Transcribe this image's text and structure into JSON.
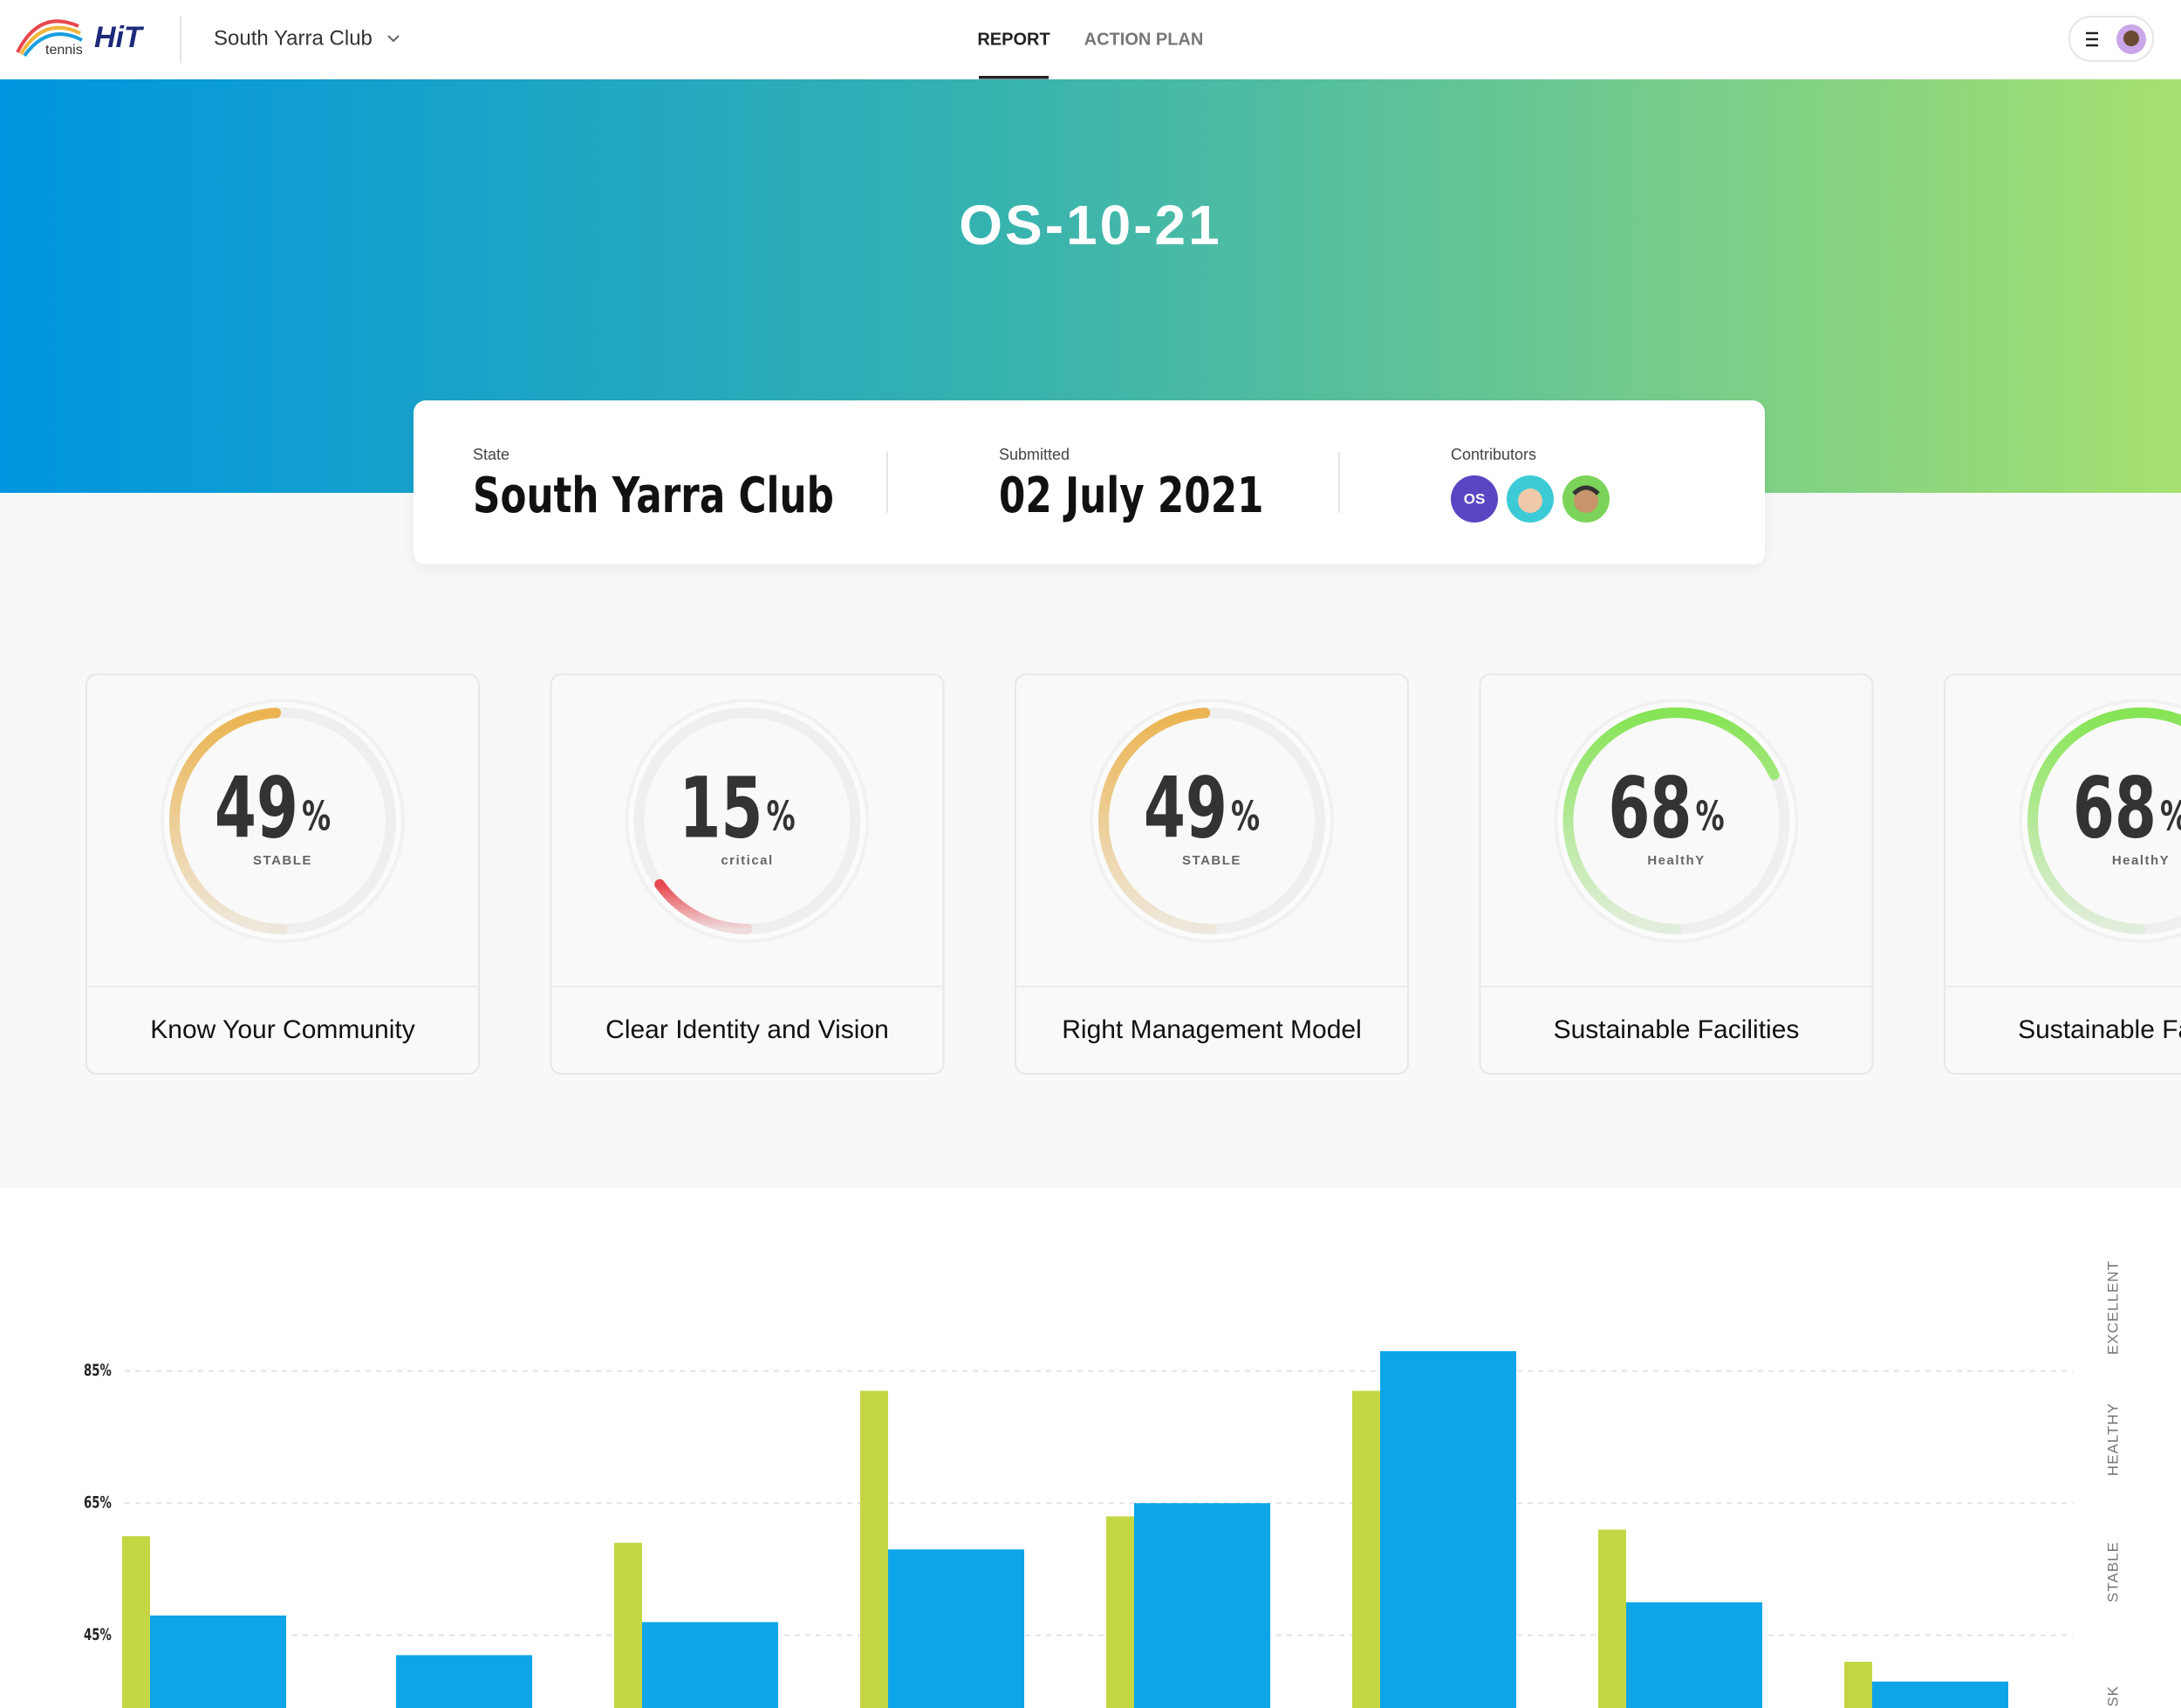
{
  "header": {
    "logo_text": "tennis",
    "brand": "HiT",
    "club": "South Yarra Club",
    "nav": [
      "REPORT",
      "ACTION PLAN"
    ]
  },
  "hero": {
    "title": "OS-10-21"
  },
  "summary": {
    "state_label": "State",
    "state": "South Yarra Club",
    "submitted_label": "Submitted",
    "submitted": "02 July 2021",
    "contributors_label": "Contributors",
    "contributors": [
      "OS"
    ]
  },
  "cards": [
    {
      "value": 49,
      "unit": "%",
      "status": "STABLE",
      "title": "Know Your Community",
      "color": "#ebb451"
    },
    {
      "value": 15,
      "unit": "%",
      "status": "critical",
      "title": "Clear Identity and Vision",
      "color": "#e8474f"
    },
    {
      "value": 49,
      "unit": "%",
      "status": "STABLE",
      "title": "Right Management Model",
      "color": "#ebb451"
    },
    {
      "value": 68,
      "unit": "%",
      "status": "HealthY",
      "title": "Sustainable Facilities",
      "color": "#86e455"
    },
    {
      "value": 68,
      "unit": "%",
      "status": "HealthY",
      "title": "Sustainable Facilities",
      "color": "#86e455"
    }
  ],
  "chart_data": {
    "type": "bar",
    "series": [
      {
        "color": "#c4d643",
        "values": [
          60,
          null,
          59,
          82,
          63,
          82,
          61,
          41
        ]
      },
      {
        "color": "#0ea5e8",
        "values": [
          48,
          42,
          47,
          58,
          65,
          88,
          50,
          38
        ]
      }
    ],
    "ylim": [
      34,
      108
    ],
    "yticks": [
      {
        "value": 45,
        "label": "45%"
      },
      {
        "value": 65,
        "label": "65%"
      },
      {
        "value": 85,
        "label": "85%"
      }
    ],
    "grid": true,
    "bands": [
      "EXCELLENT",
      "HEALTHY",
      "STABLE",
      "AT RISK"
    ]
  }
}
